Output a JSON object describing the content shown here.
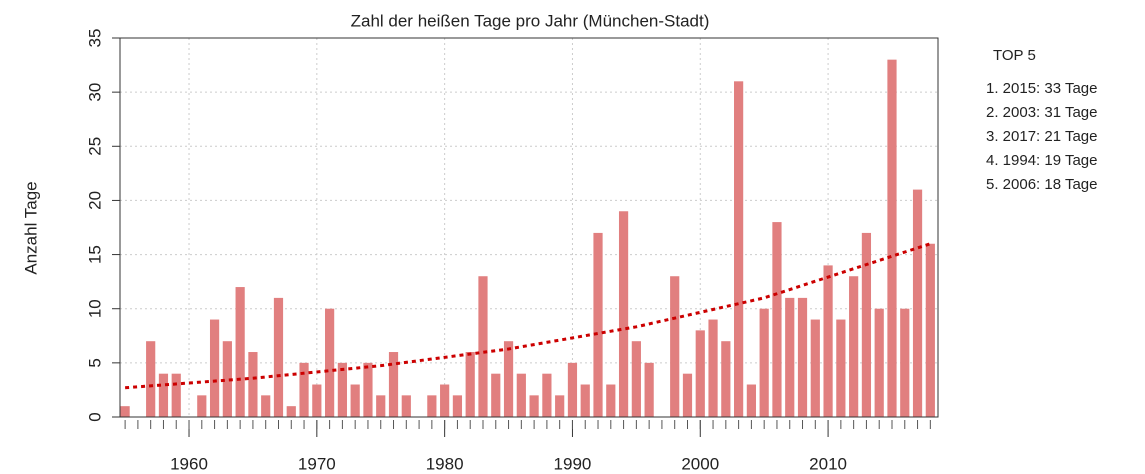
{
  "chart_data": {
    "type": "bar",
    "title": "Zahl der heißen Tage pro Jahr (München-Stadt)",
    "y_label": "Anzahl Tage",
    "x": [
      1955,
      1956,
      1957,
      1958,
      1959,
      1960,
      1961,
      1962,
      1963,
      1964,
      1965,
      1966,
      1967,
      1968,
      1969,
      1970,
      1971,
      1972,
      1973,
      1974,
      1975,
      1976,
      1977,
      1978,
      1979,
      1980,
      1981,
      1982,
      1983,
      1984,
      1985,
      1986,
      1987,
      1988,
      1989,
      1990,
      1991,
      1992,
      1993,
      1994,
      1995,
      1996,
      1997,
      1998,
      1999,
      2000,
      2001,
      2002,
      2003,
      2004,
      2005,
      2006,
      2007,
      2008,
      2009,
      2010,
      2011,
      2012,
      2013,
      2014,
      2015,
      2016,
      2017,
      2018
    ],
    "values": [
      1,
      0,
      7,
      4,
      4,
      0,
      2,
      9,
      7,
      12,
      6,
      2,
      11,
      1,
      5,
      3,
      10,
      5,
      3,
      5,
      2,
      6,
      2,
      0,
      2,
      3,
      2,
      6,
      13,
      4,
      7,
      4,
      2,
      4,
      2,
      5,
      3,
      17,
      3,
      19,
      7,
      5,
      0,
      13,
      4,
      8,
      9,
      7,
      31,
      3,
      10,
      18,
      11,
      11,
      9,
      14,
      9,
      13,
      17,
      10,
      33,
      10,
      21,
      16
    ],
    "color": "#e17f7f",
    "trend": {
      "color": "#cc0000",
      "x": [
        1955,
        1965,
        1975,
        1985,
        1995,
        2005,
        2018
      ],
      "values": [
        2.7,
        3.58,
        4.74,
        6.28,
        8.33,
        11.0,
        16
      ]
    },
    "xlim": [
      1954.6,
      2018.6
    ],
    "xticks": [
      1960,
      1970,
      1980,
      1990,
      2000,
      2010
    ],
    "ylim": [
      0,
      35
    ],
    "yticks": [
      0,
      5,
      10,
      15,
      20,
      25,
      30,
      35
    ],
    "grid": true,
    "sidebar": {
      "title": "TOP 5",
      "items": [
        "1. 2015: 33 Tage",
        "2. 2003: 31 Tage",
        "3. 2017: 21 Tage",
        "4. 1994: 19 Tage",
        "5. 2006: 18 Tage"
      ]
    }
  }
}
